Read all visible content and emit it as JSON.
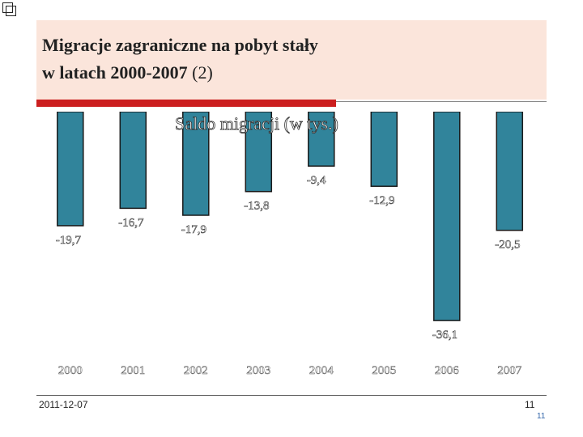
{
  "slide": {
    "title_line1": "Migracje zagraniczne na pobyt stały",
    "title_line2": "w latach 2000-2007",
    "title_suffix": "(2)",
    "footer_date": "2011-12-07",
    "page_number": "11",
    "page_number_small": "11"
  },
  "colors": {
    "header_bg": "#fbe5db",
    "accent_red": "#cc1f1f",
    "bar_fill": "#31849b",
    "bar_stroke": "#1a1a1a"
  },
  "chart_data": {
    "type": "bar",
    "title": "Saldo migracji (w tys.)",
    "categories": [
      "2000",
      "2001",
      "2002",
      "2003",
      "2004",
      "2005",
      "2006",
      "2007"
    ],
    "values": [
      -19.7,
      -16.7,
      -17.9,
      -13.8,
      -9.4,
      -12.9,
      -36.1,
      -20.5
    ],
    "value_labels": [
      "-19,7",
      "-16,7",
      "-17,9",
      "-13,8",
      "-9,4",
      "-12,9",
      "-36,1",
      "-20,5"
    ],
    "xlabel": "",
    "ylabel": "",
    "ylim": [
      -40,
      0
    ],
    "grid": false,
    "legend": "none"
  }
}
